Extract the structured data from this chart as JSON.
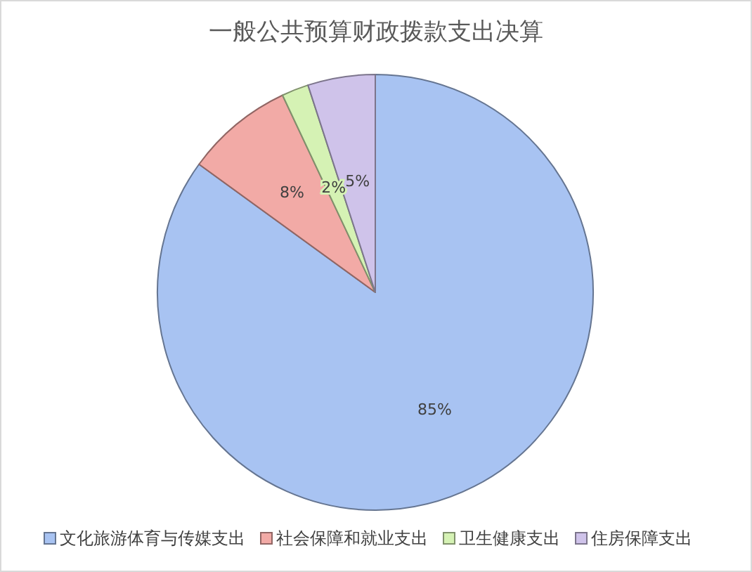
{
  "chart_data": {
    "type": "pie",
    "title": "一般公共预算财政拨款支出决算",
    "categories": [
      "文化旅游体育与传媒支出",
      "社会保障和就业支出",
      "卫生健康支出",
      "住房保障支出"
    ],
    "values": [
      85,
      8,
      2,
      5
    ],
    "colors": [
      "#a8c3f2",
      "#f2aaa6",
      "#d5f2b4",
      "#cfc3ea"
    ],
    "value_labels": [
      "85%",
      "8%",
      "2%",
      "5%"
    ],
    "legend": "bottom"
  }
}
